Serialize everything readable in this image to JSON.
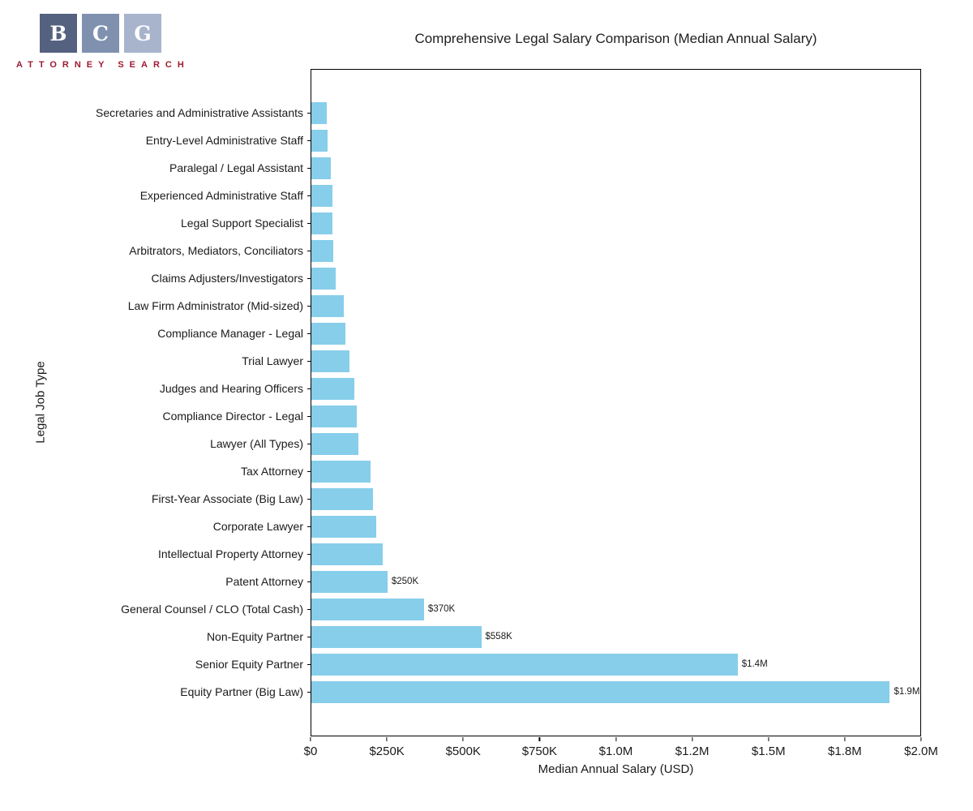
{
  "brand": {
    "letters": [
      "B",
      "C",
      "G"
    ],
    "square_colors": [
      "#54617f",
      "#8091b0",
      "#a7b4cc"
    ],
    "tagline": "ATTORNEY SEARCH",
    "tagline_color": "#9e1b32"
  },
  "chart_data": {
    "type": "bar",
    "orientation": "horizontal",
    "title": "Comprehensive Legal Salary Comparison (Median Annual Salary)",
    "xlabel": "Median Annual Salary (USD)",
    "ylabel": "Legal Job Type",
    "xlim": [
      0,
      2000000
    ],
    "x_ticks": [
      0,
      250000,
      500000,
      750000,
      1000000,
      1250000,
      1500000,
      1750000,
      2000000
    ],
    "x_tick_labels": [
      "$0",
      "$250K",
      "$500K",
      "$750K",
      "$1.0M",
      "$1.2M",
      "$1.5M",
      "$1.8M",
      "$2.0M"
    ],
    "grid": false,
    "legend": false,
    "bar_color": "#87CEEB",
    "categories": [
      "Secretaries and Administrative Assistants",
      "Entry-Level Administrative Staff",
      "Paralegal / Legal Assistant",
      "Experienced Administrative Staff",
      "Legal Support Specialist",
      "Arbitrators, Mediators, Conciliators",
      "Claims Adjusters/Investigators",
      "Law Firm Administrator (Mid-sized)",
      "Compliance Manager - Legal",
      "Trial Lawyer",
      "Judges and Hearing Officers",
      "Compliance Director - Legal",
      "Lawyer (All Types)",
      "Tax Attorney",
      "First-Year Associate (Big Law)",
      "Corporate Lawyer",
      "Intellectual Property Attorney",
      "Patent Attorney",
      "General Counsel / CLO (Total Cash)",
      "Non-Equity Partner",
      "Senior Equity Partner",
      "Equity Partner (Big Law)"
    ],
    "values": [
      50000,
      53000,
      65000,
      68000,
      70000,
      73000,
      80000,
      107000,
      112000,
      125000,
      141000,
      148000,
      155000,
      195000,
      202000,
      212000,
      234000,
      250000,
      370000,
      558000,
      1400000,
      1900000
    ],
    "bar_labels": [
      "",
      "",
      "",
      "",
      "",
      "",
      "",
      "",
      "",
      "",
      "",
      "",
      "",
      "",
      "",
      "",
      "",
      "$250K",
      "$370K",
      "$558K",
      "$1.4M",
      "$1.9M"
    ]
  }
}
